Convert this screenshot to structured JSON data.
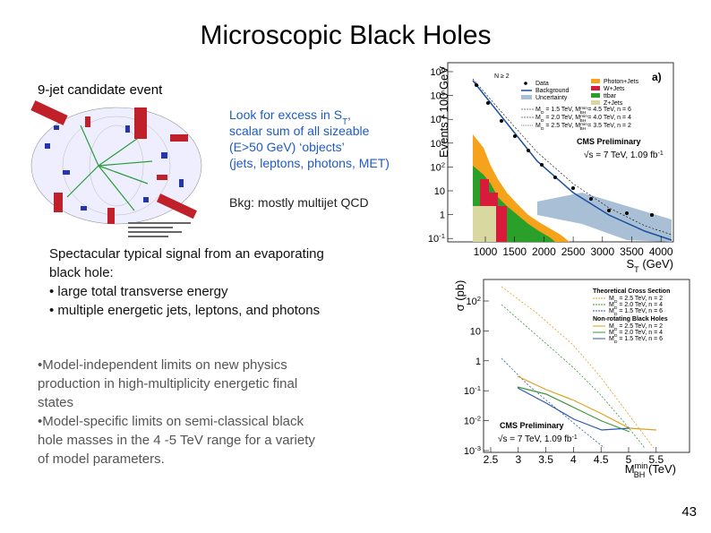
{
  "title": "Microscopic Black Holes",
  "event": {
    "caption": "9-jet candidate event"
  },
  "callout": {
    "lines": [
      [
        "Look for excess in S",
        "T",
        ","
      ],
      [
        " scalar sum of all sizeable"
      ],
      [
        "(E>50 GeV) ‘objects’"
      ],
      [
        "(jets, leptons, photons, MET)"
      ]
    ],
    "bkg": "Bkg: mostly multijet QCD"
  },
  "signal": {
    "lines": [
      "Spectacular typical signal from an evaporating",
      "black hole:",
      "• large total transverse energy",
      "• multiple energetic jets, leptons, and photons"
    ]
  },
  "limits": {
    "lines": [
      "•Model-independent limits on new physics",
      " production in high-multiplicity energetic final",
      "states",
      "•Model-specific limits on semi-classical black",
      " hole masses in the 4 -5 TeV range for a variety",
      "of  model parameters."
    ]
  },
  "plot_st": {
    "ylabel": "Events / 100 GeV",
    "yticks": [
      [
        "10",
        "6"
      ],
      [
        "10",
        "5"
      ],
      [
        "10",
        "4"
      ],
      [
        "10",
        "3"
      ],
      [
        "10",
        "2"
      ],
      [
        "10"
      ],
      [
        "1"
      ],
      [
        "10",
        "-1"
      ]
    ],
    "xticks": [
      "1000",
      "1500",
      "2000",
      "2500",
      "3000",
      "3500",
      "4000"
    ],
    "xlabel": [
      "S",
      "T",
      " (GeV)"
    ],
    "panel": "a)",
    "selection": "N ≥ 2",
    "legend_left": [
      "Data",
      "Background",
      "Uncertainty"
    ],
    "legend_right": [
      "Photon+Jets",
      "W+Jets",
      "ttbar",
      "Z+Jets"
    ],
    "legend_models": [
      [
        "M",
        "D",
        " = 1.5 TeV, M",
        "min",
        "BH",
        " = 4.5 TeV, n = 6"
      ],
      [
        "M",
        "D",
        " = 2.0 TeV, M",
        "min",
        "BH",
        " = 4.0 TeV, n = 4"
      ],
      [
        "M",
        "D",
        " = 2.5 TeV, M",
        "min",
        "BH",
        " = 3.5 TeV, n = 2"
      ]
    ],
    "cms": "CMS Preliminary",
    "lumi": [
      "√s = 7 TeV, 1.09 fb",
      "-1"
    ]
  },
  "plot_xs": {
    "ylabel": "σ (pb)",
    "yticks": [
      [
        "10",
        "2"
      ],
      [
        "10"
      ],
      [
        "1"
      ],
      [
        "10",
        "-1"
      ],
      [
        "10",
        "-2"
      ],
      [
        "10",
        "-3"
      ]
    ],
    "xticks": [
      "2.5",
      "3",
      "3.5",
      "4",
      "4.5",
      "5",
      "5.5"
    ],
    "xlabel": [
      "M",
      "min",
      "BH",
      " (TeV)"
    ],
    "legend_head1": "Theoretical Cross Section",
    "legend1": [
      [
        "M",
        "D",
        " = 2.5 TeV, n = 2"
      ],
      [
        "M",
        "D",
        " = 2.0 TeV, n = 4"
      ],
      [
        "M",
        "D",
        " = 1.5 TeV, n = 6"
      ]
    ],
    "legend_head2": "Non-rotating Black Holes",
    "legend2": [
      [
        "M",
        "D",
        " = 2.5 TeV, n = 2"
      ],
      [
        "M",
        "D",
        " = 2.0 TeV, n = 4"
      ],
      [
        "M",
        "D",
        " = 1.5 TeV, n = 6"
      ]
    ],
    "cms": "CMS Preliminary",
    "lumi": [
      "√s = 7 TeV, 1.09 fb",
      "-1"
    ]
  },
  "page_number": "43"
}
